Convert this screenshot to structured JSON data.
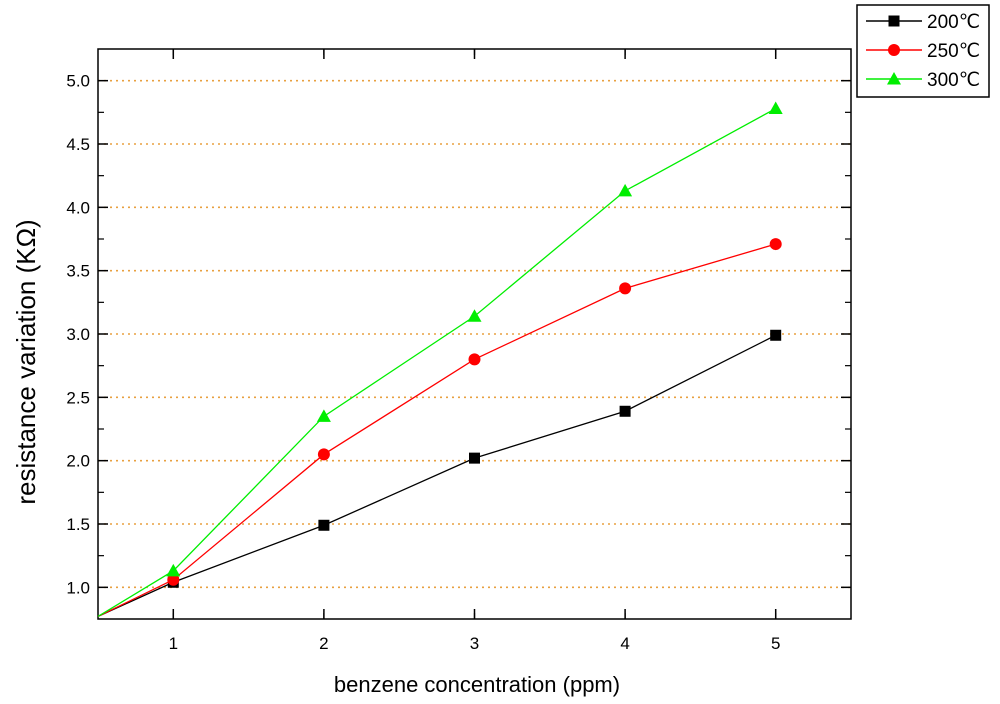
{
  "chart_data": {
    "type": "line",
    "title": "",
    "xlabel": "benzene concentration (ppm)",
    "ylabel": "resistance variation (KΩ)",
    "xlim": [
      0.5,
      5.5
    ],
    "ylim": [
      0.75,
      5.25
    ],
    "x_ticks": [
      1,
      2,
      3,
      4,
      5
    ],
    "x_tick_labels": [
      "1",
      "2",
      "3",
      "4",
      "5"
    ],
    "y_ticks": [
      1.0,
      1.5,
      2.0,
      2.5,
      3.0,
      3.5,
      4.0,
      4.5,
      5.0
    ],
    "y_tick_labels": [
      "1.0",
      "1.5",
      "2.0",
      "2.5",
      "3.0",
      "3.5",
      "4.0",
      "4.5",
      "5.0"
    ],
    "grid": "horizontal dotted",
    "legend_position": "top-right outside",
    "series": [
      {
        "name": "200℃",
        "color": "#000000",
        "marker": "square",
        "x": [
          0.5,
          1,
          2,
          3,
          4,
          5
        ],
        "y": [
          0.77,
          1.04,
          1.49,
          2.02,
          2.39,
          2.99
        ],
        "marker_x": [
          1,
          2,
          3,
          4,
          5
        ],
        "marker_y": [
          1.04,
          1.49,
          2.02,
          2.39,
          2.99
        ]
      },
      {
        "name": "250℃",
        "color": "#ff0000",
        "marker": "circle",
        "x": [
          0.5,
          1,
          2,
          3,
          4,
          5
        ],
        "y": [
          0.77,
          1.06,
          2.05,
          2.8,
          3.36,
          3.71
        ],
        "marker_x": [
          1,
          2,
          3,
          4,
          5
        ],
        "marker_y": [
          1.06,
          2.05,
          2.8,
          3.36,
          3.71
        ]
      },
      {
        "name": "300℃",
        "color": "#00ee00",
        "marker": "triangle",
        "x": [
          0.5,
          1,
          2,
          3,
          4,
          5
        ],
        "y": [
          0.77,
          1.13,
          2.35,
          3.14,
          4.13,
          4.78
        ],
        "marker_x": [
          1,
          2,
          3,
          4,
          5
        ],
        "marker_y": [
          1.13,
          2.35,
          3.14,
          4.13,
          4.78
        ]
      }
    ]
  },
  "colors": {
    "grid": "#e8a040",
    "axis": "#000000"
  }
}
